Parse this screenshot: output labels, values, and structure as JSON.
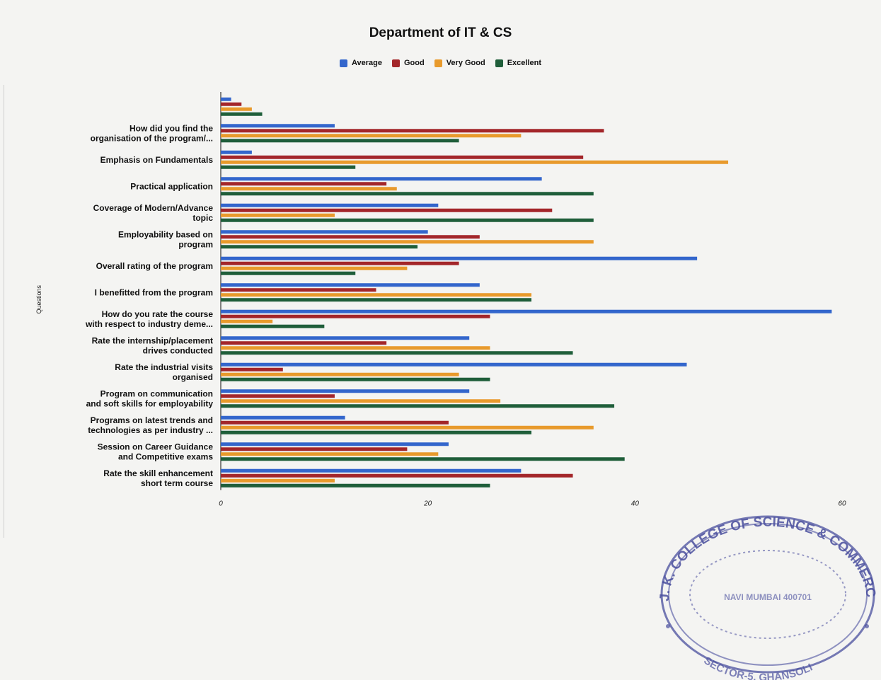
{
  "chart_data": {
    "type": "bar",
    "orientation": "horizontal",
    "title": "Department of IT & CS",
    "xlabel": "",
    "ylabel": "Questions",
    "xlim": [
      0,
      60
    ],
    "xticks": [
      "0",
      "20",
      "40",
      "60"
    ],
    "grid": false,
    "legend_position": "top",
    "categories": [
      "",
      "How did you find the organisation of the program/...",
      "Emphasis on Fundamentals",
      "Practical application",
      "Coverage of Modern/Advance topic",
      "Employability based on program",
      "Overall rating of the program",
      "I benefitted from the program",
      "How do you rate the course with respect to industry deme...",
      "Rate the internship/placement drives conducted",
      "Rate the industrial visits organised",
      "Program on communication and soft skills for employability",
      "Programs on latest trends and technologies as per industry ...",
      "Session on Career Guidance and Competitive exams",
      "Rate the skill enhancement short term course"
    ],
    "category_lines": [
      [
        ""
      ],
      [
        "How did you find the",
        "organisation of the program/..."
      ],
      [
        "Emphasis on Fundamentals"
      ],
      [
        "Practical application"
      ],
      [
        "Coverage of Modern/Advance",
        "topic"
      ],
      [
        "Employability based on",
        "program"
      ],
      [
        "Overall rating of the program"
      ],
      [
        "I benefitted from the program"
      ],
      [
        "How do you rate the course",
        "with respect to industry deme..."
      ],
      [
        "Rate the internship/placement",
        "drives conducted"
      ],
      [
        "Rate the industrial visits",
        "organised"
      ],
      [
        "Program on communication",
        "and soft skills for employability"
      ],
      [
        "Programs on latest trends and",
        "technologies as per industry ..."
      ],
      [
        "Session on Career Guidance",
        "and Competitive exams"
      ],
      [
        "Rate the skill enhancement",
        "short term course"
      ]
    ],
    "series": [
      {
        "name": "Average",
        "color": "#3366cc",
        "values": [
          1,
          11,
          3,
          31,
          21,
          20,
          46,
          25,
          59,
          24,
          45,
          24,
          12,
          22,
          29
        ]
      },
      {
        "name": "Good",
        "color": "#a3262a",
        "values": [
          2,
          37,
          35,
          16,
          32,
          25,
          23,
          15,
          26,
          16,
          6,
          11,
          22,
          18,
          34
        ]
      },
      {
        "name": "Very Good",
        "color": "#e89a2c",
        "values": [
          3,
          29,
          49,
          17,
          11,
          36,
          18,
          30,
          5,
          26,
          23,
          27,
          36,
          21,
          11
        ]
      },
      {
        "name": "Excellent",
        "color": "#1f5e3a",
        "values": [
          4,
          23,
          13,
          36,
          36,
          19,
          13,
          30,
          10,
          34,
          26,
          38,
          30,
          39,
          26
        ]
      }
    ]
  },
  "stamp": {
    "top_arc": "J. K. COLLEGE OF SCIENCE & COMMERCE",
    "center": "NAVI MUMBAI 400701",
    "bottom_arc": "SECTOR-5, GHANSOLI"
  }
}
